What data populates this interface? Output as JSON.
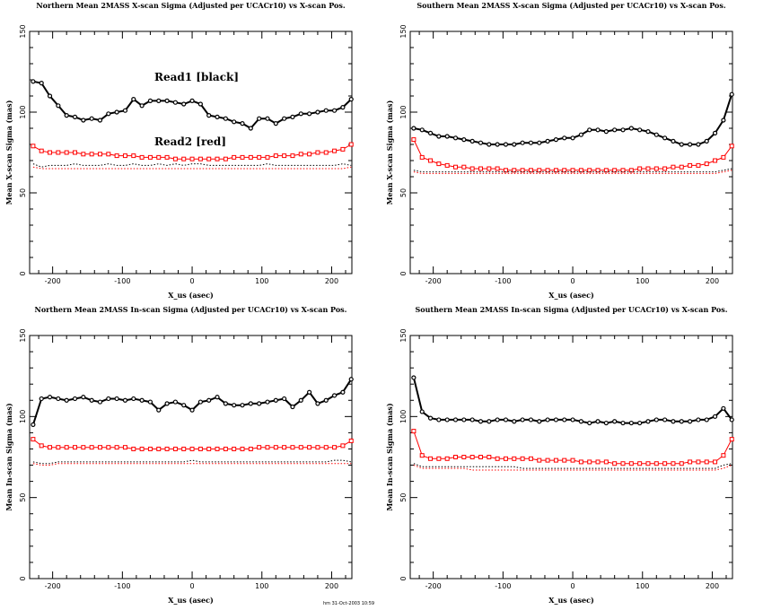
{
  "footer": "hm 31-Oct-2003 10:59",
  "colors": {
    "read1": "#000000",
    "read2": "#ff0000"
  },
  "chart_data": [
    {
      "type": "line",
      "title": "Northern Mean 2MASS X-scan Sigma (Adjusted per UCACr10) vs X-scan Pos.",
      "xlabel": "X_us (asec)",
      "ylabel": "Mean X-scan Sigma (mas)",
      "xlim": [
        -233,
        229
      ],
      "ylim": [
        0,
        150
      ],
      "xticks": [
        -200,
        -100,
        0,
        100,
        200
      ],
      "yticks": [
        0,
        50,
        100,
        150
      ],
      "annotations": [
        "Read1 [black]",
        "Read2 [red]"
      ],
      "x": [
        -228,
        -216,
        -204,
        -192,
        -180,
        -168,
        -156,
        -144,
        -132,
        -120,
        -108,
        -96,
        -84,
        -72,
        -60,
        -48,
        -36,
        -24,
        -12,
        0,
        12,
        24,
        36,
        48,
        60,
        72,
        84,
        96,
        108,
        120,
        132,
        144,
        156,
        168,
        180,
        192,
        204,
        216,
        228
      ],
      "series": [
        {
          "name": "Read1 mean",
          "color": "#000000",
          "style": "solid-circle",
          "values": [
            119,
            118,
            110,
            104,
            98,
            97,
            95,
            96,
            95,
            99,
            100,
            101,
            108,
            104,
            107,
            107,
            107,
            106,
            105,
            107,
            105,
            98,
            97,
            96,
            94,
            93,
            90,
            96,
            96,
            93,
            96,
            97,
            99,
            99,
            100,
            101,
            101,
            103,
            108
          ]
        },
        {
          "name": "Read2 mean",
          "color": "#ff0000",
          "style": "solid-square",
          "values": [
            79,
            76,
            75,
            75,
            75,
            75,
            74,
            74,
            74,
            74,
            73,
            73,
            73,
            72,
            72,
            72,
            72,
            71,
            71,
            71,
            71,
            71,
            71,
            71,
            72,
            72,
            72,
            72,
            72,
            73,
            73,
            73,
            74,
            74,
            75,
            75,
            76,
            77,
            80
          ]
        },
        {
          "name": "Read1 dotted",
          "color": "#000000",
          "style": "dotted",
          "values": [
            68,
            66,
            67,
            67,
            67,
            68,
            67,
            67,
            67,
            68,
            67,
            67,
            68,
            67,
            67,
            68,
            67,
            68,
            67,
            68,
            68,
            67,
            67,
            67,
            67,
            67,
            67,
            67,
            68,
            67,
            67,
            67,
            67,
            67,
            67,
            67,
            67,
            68,
            67
          ]
        },
        {
          "name": "Read2 dotted",
          "color": "#ff0000",
          "style": "dotted",
          "values": [
            66,
            65,
            65,
            65,
            65,
            65,
            65,
            65,
            65,
            65,
            65,
            65,
            65,
            65,
            65,
            65,
            65,
            65,
            65,
            65,
            65,
            65,
            65,
            65,
            65,
            65,
            65,
            65,
            65,
            65,
            65,
            65,
            65,
            65,
            65,
            65,
            65,
            65,
            66
          ]
        }
      ]
    },
    {
      "type": "line",
      "title": "Southern Mean 2MASS X-scan Sigma (Adjusted per UCACr10) vs X-scan Pos.",
      "xlabel": "X_us (asec)",
      "ylabel": "Mean X-scan Sigma (mas)",
      "xlim": [
        -233,
        229
      ],
      "ylim": [
        0,
        150
      ],
      "xticks": [
        -200,
        -100,
        0,
        100,
        200
      ],
      "yticks": [
        0,
        50,
        100,
        150
      ],
      "annotations": [],
      "x": [
        -228,
        -216,
        -204,
        -192,
        -180,
        -168,
        -156,
        -144,
        -132,
        -120,
        -108,
        -96,
        -84,
        -72,
        -60,
        -48,
        -36,
        -24,
        -12,
        0,
        12,
        24,
        36,
        48,
        60,
        72,
        84,
        96,
        108,
        120,
        132,
        144,
        156,
        168,
        180,
        192,
        204,
        216,
        228
      ],
      "series": [
        {
          "name": "Read1 mean",
          "color": "#000000",
          "style": "solid-circle",
          "values": [
            90,
            89,
            87,
            85,
            85,
            84,
            83,
            82,
            81,
            80,
            80,
            80,
            80,
            81,
            81,
            81,
            82,
            83,
            84,
            84,
            86,
            89,
            89,
            88,
            89,
            89,
            90,
            89,
            88,
            86,
            84,
            82,
            80,
            80,
            80,
            82,
            87,
            95,
            111
          ]
        },
        {
          "name": "Read2 mean",
          "color": "#ff0000",
          "style": "solid-square",
          "values": [
            83,
            72,
            70,
            68,
            67,
            66,
            66,
            65,
            65,
            65,
            65,
            64,
            64,
            64,
            64,
            64,
            64,
            64,
            64,
            64,
            64,
            64,
            64,
            64,
            64,
            64,
            64,
            65,
            65,
            65,
            65,
            66,
            66,
            67,
            67,
            68,
            70,
            72,
            79
          ]
        },
        {
          "name": "Read1 dotted",
          "color": "#000000",
          "style": "dotted",
          "values": [
            64,
            63,
            63,
            63,
            63,
            63,
            63,
            63,
            63,
            63,
            63,
            63,
            63,
            63,
            63,
            63,
            63,
            63,
            63,
            63,
            63,
            63,
            63,
            63,
            63,
            63,
            63,
            63,
            63,
            63,
            63,
            63,
            63,
            63,
            63,
            63,
            63,
            64,
            65
          ]
        },
        {
          "name": "Read2 dotted",
          "color": "#ff0000",
          "style": "dotted",
          "values": [
            63,
            62,
            62,
            62,
            62,
            62,
            62,
            62,
            62,
            62,
            62,
            62,
            62,
            62,
            62,
            62,
            62,
            62,
            62,
            62,
            62,
            62,
            62,
            62,
            62,
            62,
            62,
            62,
            62,
            62,
            62,
            62,
            62,
            62,
            62,
            62,
            62,
            63,
            64
          ]
        }
      ]
    },
    {
      "type": "line",
      "title": "Northern Mean 2MASS In-scan Sigma (Adjusted per UCACr10) vs X-scan Pos.",
      "xlabel": "X_us (asec)",
      "ylabel": "Mean In-scan Sigma (mas)",
      "xlim": [
        -233,
        229
      ],
      "ylim": [
        0,
        150
      ],
      "xticks": [
        -200,
        -100,
        0,
        100,
        200
      ],
      "yticks": [
        0,
        50,
        100,
        150
      ],
      "annotations": [],
      "x": [
        -228,
        -216,
        -204,
        -192,
        -180,
        -168,
        -156,
        -144,
        -132,
        -120,
        -108,
        -96,
        -84,
        -72,
        -60,
        -48,
        -36,
        -24,
        -12,
        0,
        12,
        24,
        36,
        48,
        60,
        72,
        84,
        96,
        108,
        120,
        132,
        144,
        156,
        168,
        180,
        192,
        204,
        216,
        228
      ],
      "series": [
        {
          "name": "Read1 mean",
          "color": "#000000",
          "style": "solid-circle",
          "values": [
            95,
            111,
            112,
            111,
            110,
            111,
            112,
            110,
            109,
            111,
            111,
            110,
            111,
            110,
            109,
            104,
            108,
            109,
            107,
            104,
            109,
            110,
            112,
            108,
            107,
            107,
            108,
            108,
            109,
            110,
            111,
            106,
            110,
            115,
            108,
            110,
            113,
            115,
            123
          ]
        },
        {
          "name": "Read2 mean",
          "color": "#ff0000",
          "style": "solid-square",
          "values": [
            86,
            82,
            81,
            81,
            81,
            81,
            81,
            81,
            81,
            81,
            81,
            81,
            80,
            80,
            80,
            80,
            80,
            80,
            80,
            80,
            80,
            80,
            80,
            80,
            80,
            80,
            80,
            81,
            81,
            81,
            81,
            81,
            81,
            81,
            81,
            81,
            81,
            82,
            85
          ]
        },
        {
          "name": "Read1 dotted",
          "color": "#000000",
          "style": "dotted",
          "values": [
            72,
            71,
            71,
            72,
            72,
            72,
            72,
            72,
            72,
            72,
            72,
            72,
            72,
            72,
            72,
            72,
            72,
            72,
            72,
            73,
            72,
            72,
            72,
            72,
            72,
            72,
            72,
            72,
            72,
            72,
            72,
            72,
            72,
            72,
            72,
            72,
            73,
            73,
            72
          ]
        },
        {
          "name": "Read2 dotted",
          "color": "#ff0000",
          "style": "dotted",
          "values": [
            71,
            70,
            70,
            71,
            71,
            71,
            71,
            71,
            71,
            71,
            71,
            71,
            71,
            71,
            71,
            71,
            71,
            71,
            71,
            71,
            71,
            71,
            71,
            71,
            71,
            71,
            71,
            71,
            71,
            71,
            71,
            71,
            71,
            71,
            71,
            71,
            71,
            71,
            71
          ]
        }
      ]
    },
    {
      "type": "line",
      "title": "Southern Mean 2MASS In-scan Sigma (Adjusted per UCACr10) vs X-scan Pos.",
      "xlabel": "X_us (asec)",
      "ylabel": "Mean In-scan Sigma (mas)",
      "xlim": [
        -233,
        229
      ],
      "ylim": [
        0,
        150
      ],
      "xticks": [
        -200,
        -100,
        0,
        100,
        200
      ],
      "yticks": [
        0,
        50,
        100,
        150
      ],
      "annotations": [],
      "x": [
        -228,
        -216,
        -204,
        -192,
        -180,
        -168,
        -156,
        -144,
        -132,
        -120,
        -108,
        -96,
        -84,
        -72,
        -60,
        -48,
        -36,
        -24,
        -12,
        0,
        12,
        24,
        36,
        48,
        60,
        72,
        84,
        96,
        108,
        120,
        132,
        144,
        156,
        168,
        180,
        192,
        204,
        216,
        228
      ],
      "series": [
        {
          "name": "Read1 mean",
          "color": "#000000",
          "style": "solid-circle",
          "values": [
            124,
            103,
            99,
            98,
            98,
            98,
            98,
            98,
            97,
            97,
            98,
            98,
            97,
            98,
            98,
            97,
            98,
            98,
            98,
            98,
            97,
            96,
            97,
            96,
            97,
            96,
            96,
            96,
            97,
            98,
            98,
            97,
            97,
            97,
            98,
            98,
            100,
            105,
            98
          ]
        },
        {
          "name": "Read2 mean",
          "color": "#ff0000",
          "style": "solid-square",
          "values": [
            91,
            76,
            74,
            74,
            74,
            75,
            75,
            75,
            75,
            75,
            74,
            74,
            74,
            74,
            74,
            73,
            73,
            73,
            73,
            73,
            72,
            72,
            72,
            72,
            71,
            71,
            71,
            71,
            71,
            71,
            71,
            71,
            71,
            72,
            72,
            72,
            72,
            76,
            86
          ]
        },
        {
          "name": "Read1 dotted",
          "color": "#000000",
          "style": "dotted",
          "values": [
            71,
            69,
            69,
            69,
            69,
            69,
            69,
            69,
            69,
            69,
            69,
            69,
            69,
            68,
            68,
            68,
            68,
            68,
            68,
            68,
            68,
            68,
            68,
            68,
            68,
            68,
            68,
            68,
            68,
            68,
            68,
            68,
            68,
            68,
            68,
            68,
            68,
            70,
            71
          ]
        },
        {
          "name": "Read2 dotted",
          "color": "#ff0000",
          "style": "dotted",
          "values": [
            70,
            68,
            68,
            68,
            68,
            68,
            68,
            67,
            67,
            67,
            67,
            67,
            67,
            67,
            67,
            67,
            67,
            67,
            67,
            67,
            67,
            67,
            67,
            67,
            67,
            67,
            67,
            67,
            67,
            67,
            67,
            67,
            67,
            67,
            67,
            67,
            67,
            68,
            70
          ]
        }
      ]
    }
  ]
}
